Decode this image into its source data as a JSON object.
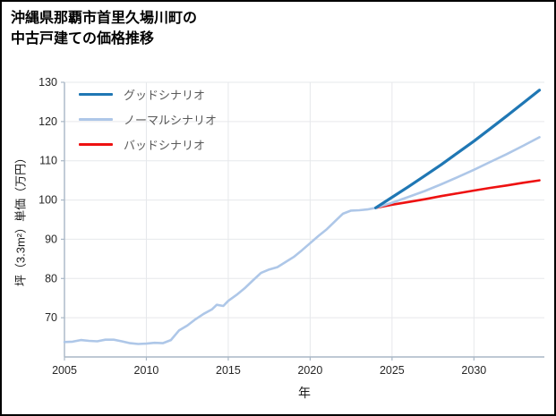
{
  "title": {
    "line1": "沖縄県那覇市首里久場川町の",
    "line2": "中古戸建ての価格推移"
  },
  "chart_data": {
    "type": "line",
    "title": "沖縄県那覇市首里久場川町の中古戸建ての価格推移",
    "xlabel": "年",
    "ylabel": "坪（3.3m²）単価（万円）",
    "xlim": [
      2005,
      2034.3
    ],
    "ylim": [
      60,
      130
    ],
    "xticks": [
      2005,
      2010,
      2015,
      2020,
      2025,
      2030
    ],
    "yticks": [
      70,
      80,
      90,
      100,
      110,
      120,
      130
    ],
    "grid": true,
    "legend_position": "upper-left",
    "colors": {
      "grid": "#e6e8eb",
      "axis": "#a9b7c6",
      "tick_text": "#262626",
      "legend_text": "#595959",
      "background": "#ffffff",
      "frame_border": "#000000"
    },
    "series": [
      {
        "id": "good-scenario",
        "name": "グッドシナリオ",
        "color": "#1f77b4",
        "width": 3.2,
        "x": [
          2024,
          2025,
          2026,
          2027,
          2028,
          2029,
          2030,
          2031,
          2032,
          2033,
          2034
        ],
        "y": [
          98.0,
          100.7,
          103.4,
          106.2,
          109.0,
          112.0,
          115.0,
          118.2,
          121.4,
          124.7,
          128.0
        ]
      },
      {
        "id": "normal-scenario",
        "name": "ノーマルシナリオ",
        "color": "#aec7e8",
        "width": 2.6,
        "x": [
          2005,
          2005.5,
          2006,
          2006.5,
          2007,
          2007.5,
          2008,
          2008.5,
          2009,
          2009.5,
          2010,
          2010.5,
          2011,
          2011.5,
          2012,
          2012.5,
          2013,
          2013.5,
          2014,
          2014.3,
          2014.7,
          2015,
          2015.5,
          2016,
          2016.5,
          2017,
          2017.5,
          2018,
          2018.5,
          2019,
          2019.5,
          2020,
          2020.5,
          2021,
          2021.5,
          2022,
          2022.5,
          2023,
          2023.5,
          2024,
          2025,
          2026,
          2027,
          2028,
          2029,
          2030,
          2031,
          2032,
          2033,
          2034
        ],
        "y": [
          63.8,
          63.9,
          64.3,
          64.1,
          64.0,
          64.4,
          64.4,
          64.0,
          63.5,
          63.3,
          63.4,
          63.6,
          63.5,
          64.3,
          66.8,
          68.0,
          69.6,
          71.0,
          72.1,
          73.3,
          73.0,
          74.3,
          75.8,
          77.5,
          79.5,
          81.4,
          82.3,
          82.9,
          84.2,
          85.5,
          87.2,
          89.0,
          90.8,
          92.5,
          94.5,
          96.5,
          97.3,
          97.4,
          97.6,
          98.0,
          99.3,
          100.8,
          102.3,
          104.0,
          105.8,
          107.7,
          109.7,
          111.7,
          113.8,
          116.0
        ]
      },
      {
        "id": "bad-scenario",
        "name": "バッドシナリオ",
        "color": "#ee1111",
        "width": 2.6,
        "x": [
          2024,
          2025,
          2026,
          2027,
          2028,
          2029,
          2030,
          2031,
          2032,
          2033,
          2034
        ],
        "y": [
          98.0,
          98.8,
          99.5,
          100.2,
          101.0,
          101.7,
          102.4,
          103.1,
          103.7,
          104.4,
          105.0
        ]
      }
    ]
  }
}
